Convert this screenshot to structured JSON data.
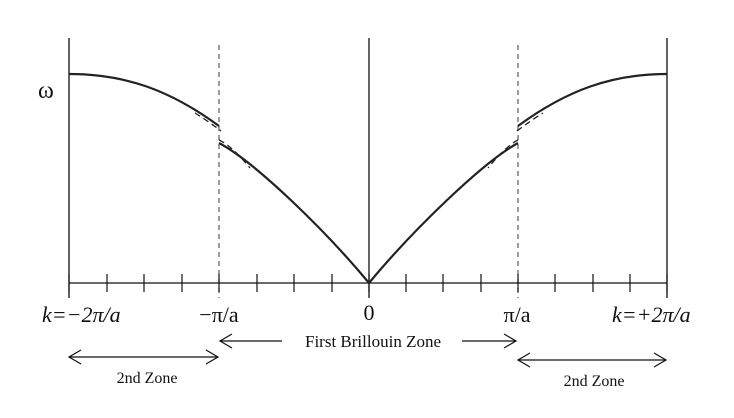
{
  "axis": {
    "y_label": "ω",
    "x_labels": {
      "left_edge": "k=−2π/a",
      "minus_pi": "−π/a",
      "zero": "0",
      "plus_pi": "π/a",
      "right_edge": "k=+2π/a"
    }
  },
  "zones": {
    "first": "First Brillouin Zone",
    "second_left": "2nd Zone",
    "second_right": "2nd Zone"
  }
}
